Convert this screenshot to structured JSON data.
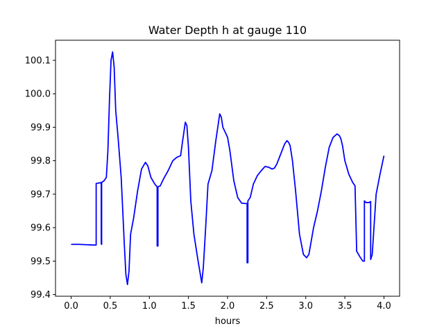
{
  "chart_data": {
    "type": "line",
    "title": "Water Depth h at gauge 110",
    "xlabel": "hours",
    "ylabel": "",
    "xlim": [
      -0.2,
      4.2
    ],
    "ylim": [
      99.395,
      100.16
    ],
    "xticks": [
      0.0,
      0.5,
      1.0,
      1.5,
      2.0,
      2.5,
      3.0,
      3.5,
      4.0
    ],
    "xtick_labels": [
      "0.0",
      "0.5",
      "1.0",
      "1.5",
      "2.0",
      "2.5",
      "3.0",
      "3.5",
      "4.0"
    ],
    "yticks": [
      99.4,
      99.5,
      99.6,
      99.7,
      99.8,
      99.9,
      100.0,
      100.1
    ],
    "ytick_labels": [
      "99.4",
      "99.5",
      "99.6",
      "99.7",
      "99.8",
      "99.9",
      "100.0",
      "100.1"
    ],
    "grid": false,
    "series": [
      {
        "color": "#0000ff",
        "x": [
          0.0,
          0.1,
          0.2,
          0.28,
          0.32,
          0.32,
          0.345,
          0.385,
          0.385,
          0.39,
          0.39,
          0.42,
          0.45,
          0.47,
          0.49,
          0.51,
          0.53,
          0.55,
          0.57,
          0.6,
          0.64,
          0.68,
          0.7,
          0.72,
          0.74,
          0.76,
          0.8,
          0.85,
          0.9,
          0.95,
          0.98,
          1.02,
          1.07,
          1.1,
          1.1,
          1.11,
          1.11,
          1.14,
          1.18,
          1.24,
          1.3,
          1.35,
          1.4,
          1.42,
          1.46,
          1.48,
          1.5,
          1.53,
          1.57,
          1.62,
          1.67,
          1.69,
          1.72,
          1.75,
          1.8,
          1.85,
          1.9,
          1.92,
          1.94,
          1.97,
          2.0,
          2.03,
          2.08,
          2.13,
          2.18,
          2.23,
          2.25,
          2.25,
          2.26,
          2.26,
          2.29,
          2.33,
          2.38,
          2.43,
          2.48,
          2.53,
          2.57,
          2.6,
          2.63,
          2.68,
          2.73,
          2.76,
          2.78,
          2.8,
          2.83,
          2.87,
          2.92,
          2.97,
          3.01,
          3.04,
          3.07,
          3.1,
          3.15,
          3.2,
          3.25,
          3.3,
          3.35,
          3.4,
          3.43,
          3.45,
          3.47,
          3.5,
          3.55,
          3.6,
          3.63,
          3.65,
          3.65,
          3.7,
          3.73,
          3.75,
          3.75,
          3.77,
          3.8,
          3.81,
          3.83,
          3.83,
          3.85,
          3.85,
          3.9,
          3.95,
          4.0
        ],
        "y": [
          99.55,
          99.55,
          99.549,
          99.548,
          99.548,
          99.732,
          99.733,
          99.735,
          99.552,
          99.55,
          99.735,
          99.74,
          99.75,
          99.83,
          99.98,
          100.1,
          100.125,
          100.08,
          99.95,
          99.87,
          99.75,
          99.55,
          99.46,
          99.43,
          99.47,
          99.58,
          99.63,
          99.71,
          99.775,
          99.795,
          99.785,
          99.75,
          99.73,
          99.722,
          99.545,
          99.545,
          99.722,
          99.725,
          99.745,
          99.77,
          99.8,
          99.81,
          99.815,
          99.85,
          99.915,
          99.905,
          99.84,
          99.68,
          99.58,
          99.505,
          99.435,
          99.48,
          99.6,
          99.73,
          99.77,
          99.86,
          99.94,
          99.93,
          99.9,
          99.885,
          99.87,
          99.83,
          99.74,
          99.69,
          99.673,
          99.672,
          99.672,
          99.495,
          99.495,
          99.68,
          99.69,
          99.73,
          99.755,
          99.77,
          99.783,
          99.78,
          99.775,
          99.778,
          99.79,
          99.82,
          99.85,
          99.86,
          99.855,
          99.845,
          99.8,
          99.71,
          99.58,
          99.52,
          99.51,
          99.52,
          99.56,
          99.6,
          99.65,
          99.71,
          99.78,
          99.84,
          99.87,
          99.88,
          99.875,
          99.865,
          99.845,
          99.8,
          99.76,
          99.735,
          99.725,
          99.54,
          99.53,
          99.51,
          99.5,
          99.5,
          99.68,
          99.675,
          99.675,
          99.675,
          99.678,
          99.505,
          99.52,
          99.52,
          99.7,
          99.76,
          99.815
        ]
      }
    ]
  }
}
